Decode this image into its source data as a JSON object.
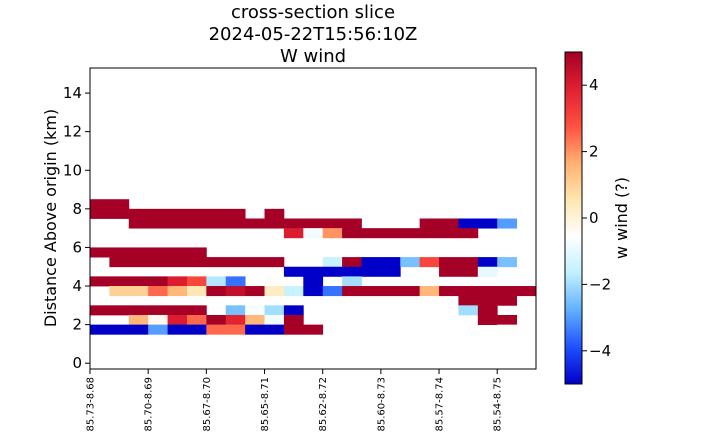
{
  "chart_data": {
    "type": "heatmap",
    "title_lines": [
      "cross-section slice",
      "2024-05-22T15:56:10Z",
      "W wind"
    ],
    "ylabel": "Distance Above origin (km)",
    "ylim": [
      -0.3,
      15.3
    ],
    "yticks": [
      0,
      2,
      4,
      6,
      8,
      10,
      12,
      14
    ],
    "xlim": [
      0,
      23
    ],
    "xticks": [
      {
        "pos": 0,
        "label": "-85.73-8.68"
      },
      {
        "pos": 3,
        "label": "-85.70-8.69"
      },
      {
        "pos": 6,
        "label": "-85.67-8.70"
      },
      {
        "pos": 9,
        "label": "-85.65-8.71"
      },
      {
        "pos": 12,
        "label": "-85.62-8.72"
      },
      {
        "pos": 15,
        "label": "-85.60-8.73"
      },
      {
        "pos": 18,
        "label": "-85.57-8.74"
      },
      {
        "pos": 21,
        "label": "-85.54-8.75"
      }
    ],
    "colorbar": {
      "label": "w wind (?)",
      "range": [
        -5,
        5
      ],
      "ticks": [
        -4,
        -2,
        0,
        2,
        4
      ],
      "colormap": "RdYlBu_r",
      "stops": [
        "#0000c8",
        "#2050ff",
        "#60b0ff",
        "#c0f0ff",
        "#ffffff",
        "#ffe6b0",
        "#ffb070",
        "#ff5040",
        "#e02030",
        "#a50026"
      ]
    },
    "grid": false,
    "cell_height_km": 0.5,
    "cells": [
      {
        "y": 8.0,
        "x0": 0,
        "x1": 2,
        "w": 5
      },
      {
        "y": 7.5,
        "x0": 0,
        "x1": 2,
        "w": 5
      },
      {
        "y": 7.5,
        "x0": 2,
        "x1": 8,
        "w": 5
      },
      {
        "y": 7.5,
        "x0": 9,
        "x1": 10,
        "w": 5
      },
      {
        "y": 7.0,
        "x0": 2,
        "x1": 14,
        "w": 5
      },
      {
        "y": 7.0,
        "x0": 17,
        "x1": 19,
        "w": 5
      },
      {
        "y": 7.0,
        "x0": 19,
        "x1": 21,
        "w": -5
      },
      {
        "y": 7.0,
        "x0": 21,
        "x1": 22,
        "w": -3
      },
      {
        "y": 6.5,
        "x0": 10,
        "x1": 11,
        "w": 4
      },
      {
        "y": 6.5,
        "x0": 11,
        "x1": 12,
        "w": -0.8
      },
      {
        "y": 6.5,
        "x0": 12,
        "x1": 13,
        "w": 2
      },
      {
        "y": 6.5,
        "x0": 13,
        "x1": 20,
        "w": 5
      },
      {
        "y": 5.5,
        "x0": 0,
        "x1": 6,
        "w": 5
      },
      {
        "y": 5.0,
        "x0": 1,
        "x1": 10,
        "w": 5
      },
      {
        "y": 5.0,
        "x0": 12,
        "x1": 13,
        "w": -1.5
      },
      {
        "y": 5.0,
        "x0": 13,
        "x1": 14,
        "w": 5
      },
      {
        "y": 5.0,
        "x0": 14,
        "x1": 16,
        "w": -5
      },
      {
        "y": 5.0,
        "x0": 16,
        "x1": 17,
        "w": -2.5
      },
      {
        "y": 5.0,
        "x0": 17,
        "x1": 18,
        "w": 3
      },
      {
        "y": 5.0,
        "x0": 18,
        "x1": 20,
        "w": 5
      },
      {
        "y": 5.0,
        "x0": 20,
        "x1": 21,
        "w": -5
      },
      {
        "y": 5.0,
        "x0": 21,
        "x1": 22,
        "w": -2.5
      },
      {
        "y": 4.5,
        "x0": 10,
        "x1": 16,
        "w": -5
      },
      {
        "y": 4.5,
        "x0": 18,
        "x1": 20,
        "w": 5
      },
      {
        "y": 4.5,
        "x0": 20,
        "x1": 21,
        "w": -1
      },
      {
        "y": 4.0,
        "x0": 0,
        "x1": 4,
        "w": 5
      },
      {
        "y": 4.0,
        "x0": 4,
        "x1": 5,
        "w": 4
      },
      {
        "y": 4.0,
        "x0": 5,
        "x1": 6,
        "w": 3
      },
      {
        "y": 4.0,
        "x0": 6,
        "x1": 7,
        "w": -1.8
      },
      {
        "y": 4.0,
        "x0": 7,
        "x1": 8,
        "w": -3.5
      },
      {
        "y": 4.0,
        "x0": 9,
        "x1": 10,
        "w": -0.5
      },
      {
        "y": 4.0,
        "x0": 11,
        "x1": 12,
        "w": -5
      },
      {
        "y": 4.0,
        "x0": 13,
        "x1": 14,
        "w": -2
      },
      {
        "y": 3.5,
        "x0": 1,
        "x1": 3,
        "w": 1
      },
      {
        "y": 3.5,
        "x0": 3,
        "x1": 4,
        "w": 2.5
      },
      {
        "y": 3.5,
        "x0": 4,
        "x1": 5,
        "w": 1.5
      },
      {
        "y": 3.5,
        "x0": 5,
        "x1": 6,
        "w": 0.5
      },
      {
        "y": 3.5,
        "x0": 6,
        "x1": 7,
        "w": 5
      },
      {
        "y": 3.5,
        "x0": 7,
        "x1": 8,
        "w": 4.5
      },
      {
        "y": 3.5,
        "x0": 8,
        "x1": 9,
        "w": 5
      },
      {
        "y": 3.5,
        "x0": 9,
        "x1": 10,
        "w": 0.3
      },
      {
        "y": 3.5,
        "x0": 10,
        "x1": 11,
        "w": -1.5
      },
      {
        "y": 3.5,
        "x0": 11,
        "x1": 12,
        "w": -5
      },
      {
        "y": 3.5,
        "x0": 12,
        "x1": 13,
        "w": -3.5
      },
      {
        "y": 3.5,
        "x0": 13,
        "x1": 17,
        "w": 5
      },
      {
        "y": 3.5,
        "x0": 17,
        "x1": 18,
        "w": 1.5
      },
      {
        "y": 3.5,
        "x0": 18,
        "x1": 23,
        "w": 5
      },
      {
        "y": 3.0,
        "x0": 19,
        "x1": 22,
        "w": 5
      },
      {
        "y": 2.5,
        "x0": 0,
        "x1": 6,
        "w": 5
      },
      {
        "y": 2.5,
        "x0": 7,
        "x1": 8,
        "w": -2.5
      },
      {
        "y": 2.5,
        "x0": 8,
        "x1": 9,
        "w": -0.7
      },
      {
        "y": 2.5,
        "x0": 9,
        "x1": 10,
        "w": -2
      },
      {
        "y": 2.5,
        "x0": 10,
        "x1": 11,
        "w": -5
      },
      {
        "y": 2.5,
        "x0": 19,
        "x1": 20,
        "w": -2
      },
      {
        "y": 2.5,
        "x0": 20,
        "x1": 21,
        "w": 5
      },
      {
        "y": 2.0,
        "x0": 2,
        "x1": 3,
        "w": 1.5
      },
      {
        "y": 2.0,
        "x0": 3,
        "x1": 4,
        "w": -0.3
      },
      {
        "y": 2.0,
        "x0": 4,
        "x1": 5,
        "w": 4
      },
      {
        "y": 2.0,
        "x0": 5,
        "x1": 6,
        "w": 2.5
      },
      {
        "y": 2.0,
        "x0": 6,
        "x1": 7,
        "w": 5
      },
      {
        "y": 2.0,
        "x0": 7,
        "x1": 8,
        "w": 3.8
      },
      {
        "y": 2.0,
        "x0": 8,
        "x1": 9,
        "w": 1.5
      },
      {
        "y": 2.0,
        "x0": 9,
        "x1": 10,
        "w": -0.8
      },
      {
        "y": 2.0,
        "x0": 10,
        "x1": 11,
        "w": 5
      },
      {
        "y": 2.0,
        "x0": 20,
        "x1": 22,
        "w": 5
      },
      {
        "y": 1.5,
        "x0": 0,
        "x1": 3,
        "w": -5
      },
      {
        "y": 1.5,
        "x0": 3,
        "x1": 4,
        "w": -3
      },
      {
        "y": 1.5,
        "x0": 4,
        "x1": 6,
        "w": -5
      },
      {
        "y": 1.5,
        "x0": 6,
        "x1": 8,
        "w": 2.5
      },
      {
        "y": 1.5,
        "x0": 8,
        "x1": 10,
        "w": -5
      },
      {
        "y": 1.5,
        "x0": 10,
        "x1": 12,
        "w": 5
      },
      {
        "y": 1.5,
        "x0": 21,
        "x1": 22,
        "w": -0.5
      }
    ]
  }
}
